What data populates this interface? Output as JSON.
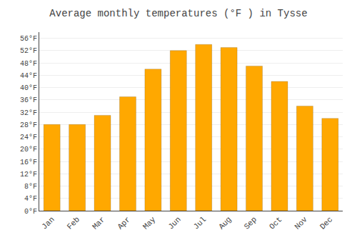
{
  "chart_data": {
    "type": "bar",
    "title": "Average monthly temperatures (°F ) in Tysse",
    "categories": [
      "Jan",
      "Feb",
      "Mar",
      "Apr",
      "May",
      "Jun",
      "Jul",
      "Aug",
      "Sep",
      "Oct",
      "Nov",
      "Dec"
    ],
    "values": [
      28,
      28,
      31,
      37,
      46,
      52,
      54,
      53,
      47,
      42,
      34,
      30
    ],
    "color": "#FFA800",
    "ylim": [
      0,
      58
    ],
    "yticks": [
      {
        "value": 0,
        "label": "0°F"
      },
      {
        "value": 4,
        "label": "4°F"
      },
      {
        "value": 8,
        "label": "8°F"
      },
      {
        "value": 12,
        "label": "12°F"
      },
      {
        "value": 16,
        "label": "16°F"
      },
      {
        "value": 20,
        "label": "20°F"
      },
      {
        "value": 24,
        "label": "24°F"
      },
      {
        "value": 28,
        "label": "28°F"
      },
      {
        "value": 32,
        "label": "32°F"
      },
      {
        "value": 36,
        "label": "36°F"
      },
      {
        "value": 40,
        "label": "40°F"
      },
      {
        "value": 44,
        "label": "44°F"
      },
      {
        "value": 48,
        "label": "48°F"
      },
      {
        "value": 52,
        "label": "52°F"
      },
      {
        "value": 56,
        "label": "56°F"
      }
    ],
    "grid": true
  }
}
